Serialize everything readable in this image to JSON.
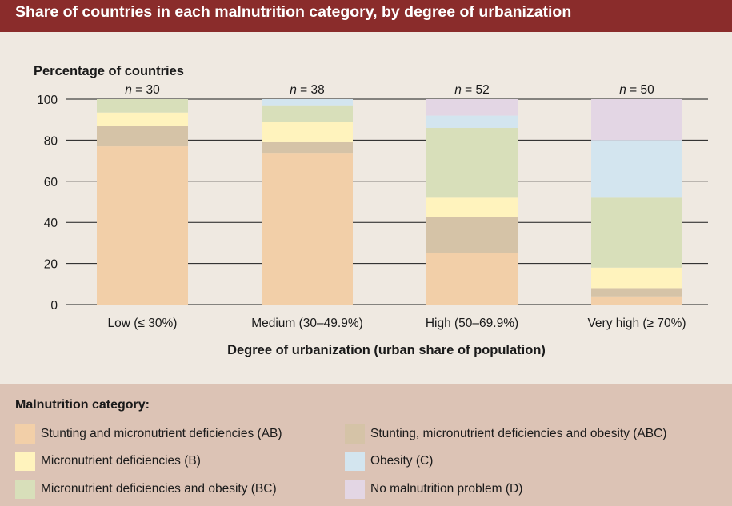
{
  "title": "Share of countries in each malnutrition category, by degree of urbanization",
  "legend": {
    "title": "Malnutrition category:",
    "items": [
      {
        "label": "Stunting and micronutrient deficiencies (AB)",
        "color": "#f2cfa8"
      },
      {
        "label": "Stunting, micronutrient deficiencies and obesity (ABC)",
        "color": "#d5c3a7"
      },
      {
        "label": "Micronutrient deficiencies (B)",
        "color": "#fff3bd"
      },
      {
        "label": "Obesity (C)",
        "color": "#d3e5ef"
      },
      {
        "label": "Micronutrient deficiencies and obesity (BC)",
        "color": "#d8dfba"
      },
      {
        "label": "No malnutrition problem (D)",
        "color": "#e3d6e4"
      }
    ]
  },
  "chart_data": {
    "type": "bar",
    "stacked": true,
    "ylabel": "Percentage of countries",
    "xlabel": "Degree of urbanization (urban share of population)",
    "ylim": [
      0,
      100
    ],
    "yticks": [
      0,
      20,
      40,
      60,
      80,
      100
    ],
    "grid": true,
    "categories": [
      "Low (≤ 30%)",
      "Medium (30–49.9%)",
      "High (50–69.9%)",
      "Very high (≥ 70%)"
    ],
    "n_labels": [
      "n = 30",
      "n = 38",
      "n = 52",
      "n = 50"
    ],
    "series": [
      {
        "name": "Stunting and micronutrient deficiencies (AB)",
        "color": "#f2cfa8",
        "values": [
          77,
          73.5,
          25,
          4
        ]
      },
      {
        "name": "Stunting, micronutrient deficiencies and obesity (ABC)",
        "color": "#d5c3a7",
        "values": [
          10,
          5.5,
          17.5,
          4
        ]
      },
      {
        "name": "Micronutrient deficiencies (B)",
        "color": "#fff3bd",
        "values": [
          6.5,
          10,
          9.5,
          10
        ]
      },
      {
        "name": "Micronutrient deficiencies and obesity (BC)",
        "color": "#d8dfba",
        "values": [
          6.5,
          8,
          34,
          34
        ]
      },
      {
        "name": "Obesity (C)",
        "color": "#d3e5ef",
        "values": [
          0,
          3,
          6,
          28
        ]
      },
      {
        "name": "No malnutrition problem (D)",
        "color": "#e3d6e4",
        "values": [
          0,
          0,
          8,
          20
        ]
      }
    ]
  }
}
